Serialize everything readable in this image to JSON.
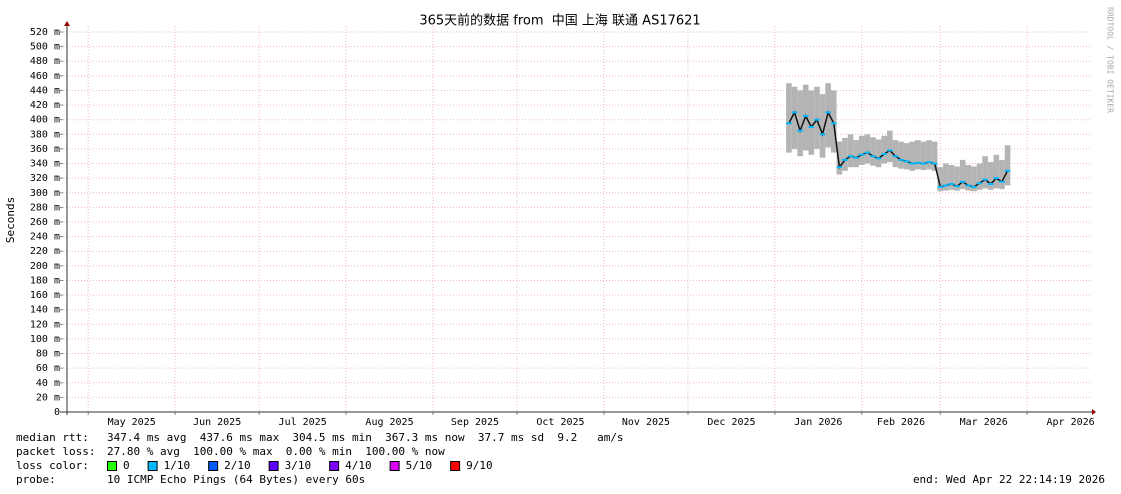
{
  "chart_data": {
    "type": "smokeping",
    "title": "365天前的数据 from  中国 上海 联通 AS17621",
    "y_label": "Seconds",
    "watermark": "RRDTOOL / TOBI OETIKER",
    "xlim": [
      0,
      365
    ],
    "xticks": [
      {
        "value": 9,
        "label": "May 2025"
      },
      {
        "value": 40,
        "label": "Jun 2025"
      },
      {
        "value": 70,
        "label": "Jul 2025"
      },
      {
        "value": 101,
        "label": "Aug 2025"
      },
      {
        "value": 132,
        "label": "Sep 2025"
      },
      {
        "value": 162,
        "label": "Oct 2025"
      },
      {
        "value": 193,
        "label": "Nov 2025"
      },
      {
        "value": 223,
        "label": "Dec 2025"
      },
      {
        "value": 254,
        "label": "Jan 2026"
      },
      {
        "value": 285,
        "label": "Feb 2026"
      },
      {
        "value": 313,
        "label": "Mar 2026"
      },
      {
        "value": 344,
        "label": "Apr 2026"
      }
    ],
    "ylim": [
      0,
      0.52
    ],
    "yticks": [
      0,
      {
        "value": 0.02,
        "label": "20 m"
      },
      {
        "value": 0.04,
        "label": "40 m"
      },
      {
        "value": 0.06,
        "label": "60 m"
      },
      {
        "value": 0.08,
        "label": "80 m"
      },
      {
        "value": 0.1,
        "label": "100 m"
      },
      {
        "value": 0.12,
        "label": "120 m"
      },
      {
        "value": 0.14,
        "label": "140 m"
      },
      {
        "value": 0.16,
        "label": "160 m"
      },
      {
        "value": 0.18,
        "label": "180 m"
      },
      {
        "value": 0.2,
        "label": "200 m"
      },
      {
        "value": 0.22,
        "label": "220 m"
      },
      {
        "value": 0.24,
        "label": "240 m"
      },
      {
        "value": 0.26,
        "label": "260 m"
      },
      {
        "value": 0.28,
        "label": "280 m"
      },
      {
        "value": 0.3,
        "label": "300 m"
      },
      {
        "value": 0.32,
        "label": "320 m"
      },
      {
        "value": 0.34,
        "label": "340 m"
      },
      {
        "value": 0.36,
        "label": "360 m"
      },
      {
        "value": 0.38,
        "label": "380 m"
      },
      {
        "value": 0.4,
        "label": "400 m"
      },
      {
        "value": 0.42,
        "label": "420 m"
      },
      {
        "value": 0.44,
        "label": "440 m"
      },
      {
        "value": 0.46,
        "label": "460 m"
      },
      {
        "value": 0.48,
        "label": "480 m"
      },
      {
        "value": 0.5,
        "label": "500 m"
      },
      {
        "value": 0.52,
        "label": "520 m"
      }
    ],
    "grid": true,
    "x": [
      259,
      261,
      263,
      265,
      267,
      269,
      271,
      273,
      275,
      277,
      279,
      281,
      283,
      285,
      287,
      289,
      291,
      293,
      295,
      297,
      299,
      301,
      303,
      305,
      307,
      309,
      311,
      313,
      315,
      317,
      319,
      321,
      323,
      325,
      327,
      329,
      331,
      333,
      335,
      337
    ],
    "smoke": {
      "color": "#b4b4b4",
      "low": [
        0.355,
        0.36,
        0.35,
        0.358,
        0.352,
        0.36,
        0.348,
        0.362,
        0.355,
        0.325,
        0.33,
        0.335,
        0.335,
        0.338,
        0.34,
        0.337,
        0.335,
        0.34,
        0.342,
        0.335,
        0.333,
        0.332,
        0.33,
        0.332,
        0.331,
        0.332,
        0.33,
        0.302,
        0.303,
        0.304,
        0.303,
        0.305,
        0.303,
        0.302,
        0.304,
        0.306,
        0.304,
        0.306,
        0.305,
        0.31
      ],
      "high": [
        0.45,
        0.445,
        0.44,
        0.448,
        0.44,
        0.445,
        0.435,
        0.45,
        0.44,
        0.37,
        0.375,
        0.38,
        0.372,
        0.378,
        0.38,
        0.376,
        0.373,
        0.378,
        0.385,
        0.372,
        0.37,
        0.368,
        0.37,
        0.372,
        0.37,
        0.372,
        0.37,
        0.335,
        0.34,
        0.338,
        0.336,
        0.345,
        0.338,
        0.336,
        0.34,
        0.35,
        0.342,
        0.352,
        0.345,
        0.365
      ]
    },
    "median": {
      "color": "#00b8ff",
      "values": [
        0.395,
        0.41,
        0.385,
        0.405,
        0.39,
        0.4,
        0.38,
        0.41,
        0.395,
        0.335,
        0.345,
        0.35,
        0.348,
        0.352,
        0.355,
        0.35,
        0.347,
        0.353,
        0.358,
        0.35,
        0.345,
        0.343,
        0.34,
        0.341,
        0.34,
        0.342,
        0.34,
        0.308,
        0.31,
        0.312,
        0.309,
        0.315,
        0.31,
        0.308,
        0.313,
        0.318,
        0.312,
        0.32,
        0.315,
        0.33
      ]
    },
    "stats": [
      {
        "label": "median rtt:",
        "text": "347.4 ms avg  437.6 ms max  304.5 ms min  367.3 ms now  37.7 ms sd  9.2   am/s"
      },
      {
        "label": "packet loss:",
        "text": "27.80 % avg  100.00 % max  0.00 % min  100.00 % now"
      }
    ],
    "loss_label": "loss color:",
    "loss_colors": [
      {
        "label": "0",
        "color": "#26ff00"
      },
      {
        "label": "1/10",
        "color": "#00b8ff"
      },
      {
        "label": "2/10",
        "color": "#0059ff"
      },
      {
        "label": "3/10",
        "color": "#5e00ff"
      },
      {
        "label": "4/10",
        "color": "#7e00ff"
      },
      {
        "label": "5/10",
        "color": "#dd00ff"
      },
      {
        "label": "9/10",
        "color": "#ff0000"
      }
    ],
    "probe_label": "probe:",
    "probe": "10 ICMP Echo Pings (64 Bytes) every 60s",
    "end": "end: Wed Apr 22 22:14:19 2026"
  }
}
